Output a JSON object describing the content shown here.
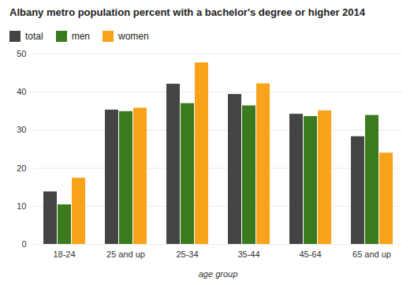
{
  "chart_data": {
    "type": "bar",
    "title": "Albany metro population percent with a bachelor's degree or higher 2014",
    "x_label": "age group",
    "categories": [
      "18-24",
      "25 and up",
      "25-34",
      "35-44",
      "45-64",
      "65 and up"
    ],
    "series": [
      {
        "name": "total",
        "color": "#444444",
        "values": [
          13.8,
          35.3,
          42.1,
          39.4,
          34.2,
          28.3
        ]
      },
      {
        "name": "men",
        "color": "#3b7a1d",
        "values": [
          10.4,
          34.9,
          37.0,
          36.4,
          33.6,
          33.9
        ]
      },
      {
        "name": "women",
        "color": "#f9a31b",
        "values": [
          17.4,
          35.8,
          47.7,
          42.2,
          35.1,
          24.0
        ]
      }
    ],
    "ylim": [
      0,
      50
    ],
    "yticks": [
      0,
      10,
      20,
      30,
      40,
      50
    ],
    "grid": true,
    "legend": "top-left"
  }
}
